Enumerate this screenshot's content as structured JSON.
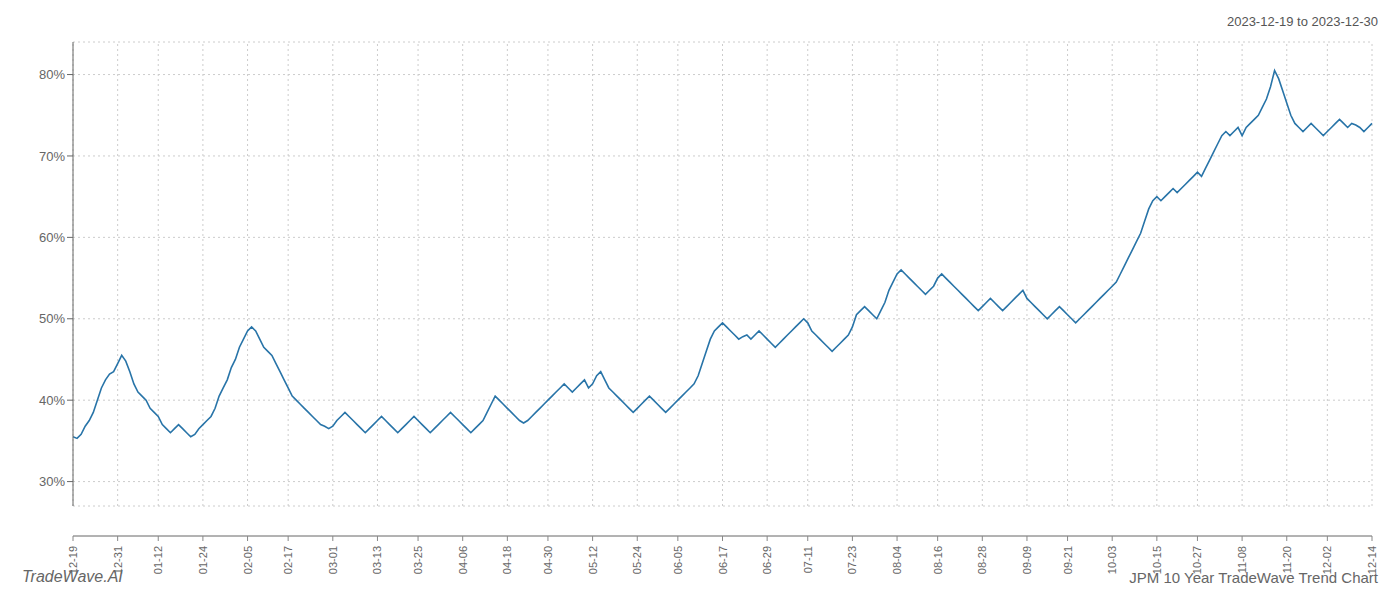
{
  "chart_data": {
    "type": "line",
    "title": "JPM 10 Year TradeWave Trend Chart",
    "subtitle": "2023-12-19 to 2023-12-30",
    "annotations": [
      "TradeWave.AI"
    ],
    "color": "#2874a8",
    "grid": true,
    "ylim": [
      27,
      84
    ],
    "yticks": [
      {
        "value": 30,
        "label": "30%"
      },
      {
        "value": 40,
        "label": "40%"
      },
      {
        "value": 50,
        "label": "50%"
      },
      {
        "value": 60,
        "label": "60%"
      },
      {
        "value": 70,
        "label": "70%"
      },
      {
        "value": 80,
        "label": "80%"
      }
    ],
    "shade": {
      "from": 0.028,
      "to": 0.06,
      "color": "#d8edd4"
    },
    "categories": [
      "12-19",
      null,
      null,
      null,
      null,
      null,
      null,
      null,
      null,
      null,
      null,
      "12-31",
      null,
      null,
      null,
      null,
      null,
      null,
      null,
      null,
      null,
      "01-12",
      null,
      null,
      null,
      null,
      null,
      null,
      null,
      null,
      null,
      null,
      "01-24",
      null,
      null,
      null,
      null,
      null,
      null,
      null,
      null,
      null,
      null,
      "02-05",
      null,
      null,
      null,
      null,
      null,
      null,
      null,
      null,
      null,
      "02-17",
      null,
      null,
      null,
      null,
      null,
      null,
      null,
      null,
      null,
      null,
      "03-01",
      null,
      null,
      null,
      null,
      null,
      null,
      null,
      null,
      null,
      null,
      "03-13",
      null,
      null,
      null,
      null,
      null,
      null,
      null,
      null,
      null,
      "03-25",
      null,
      null,
      null,
      null,
      null,
      null,
      null,
      null,
      null,
      null,
      "04-06",
      null,
      null,
      null,
      null,
      null,
      null,
      null,
      null,
      null,
      null,
      "04-18",
      null,
      null,
      null,
      null,
      null,
      null,
      null,
      null,
      null,
      "04-30",
      null,
      null,
      null,
      null,
      null,
      null,
      null,
      null,
      null,
      null,
      "05-12",
      null,
      null,
      null,
      null,
      null,
      null,
      null,
      null,
      null,
      null,
      "05-24",
      null,
      null,
      null,
      null,
      null,
      null,
      null,
      null,
      null,
      "06-05",
      null,
      null,
      null,
      null,
      null,
      null,
      null,
      null,
      null,
      null,
      "06-17",
      null,
      null,
      null,
      null,
      null,
      null,
      null,
      null,
      null,
      null,
      "06-29",
      null,
      null,
      null,
      null,
      null,
      null,
      null,
      null,
      null,
      "07-11",
      null,
      null,
      null,
      null,
      null,
      null,
      null,
      null,
      null,
      null,
      "07-23",
      null,
      null,
      null,
      null,
      null,
      null,
      null,
      null,
      null,
      null,
      "08-04",
      null,
      null,
      null,
      null,
      null,
      null,
      null,
      null,
      null,
      "08-16",
      null,
      null,
      null,
      null,
      null,
      null,
      null,
      null,
      null,
      null,
      "08-28",
      null,
      null,
      null,
      null,
      null,
      null,
      null,
      null,
      null,
      null,
      "09-09",
      null,
      null,
      null,
      null,
      null,
      null,
      null,
      null,
      null,
      "09-21",
      null,
      null,
      null,
      null,
      null,
      null,
      null,
      null,
      null,
      null,
      "10-03",
      null,
      null,
      null,
      null,
      null,
      null,
      null,
      null,
      null,
      null,
      "10-15",
      null,
      null,
      null,
      null,
      null,
      null,
      null,
      null,
      null,
      "10-27",
      null,
      null,
      null,
      null,
      null,
      null,
      null,
      null,
      null,
      null,
      "11-08",
      null,
      null,
      null,
      null,
      null,
      null,
      null,
      null,
      null,
      null,
      "11-20",
      null,
      null,
      null,
      null,
      null,
      null,
      null,
      null,
      null,
      "12-02",
      null,
      null,
      null,
      null,
      null,
      null,
      null,
      null,
      null,
      null,
      "12-14"
    ],
    "values": [
      35.5,
      35.3,
      35.8,
      36.8,
      37.5,
      38.5,
      40.0,
      41.5,
      42.5,
      43.2,
      43.5,
      44.5,
      45.5,
      44.8,
      43.5,
      42.0,
      41.0,
      40.5,
      40.0,
      39.0,
      38.5,
      38.0,
      37.0,
      36.5,
      36.0,
      36.5,
      37.0,
      36.5,
      36.0,
      35.5,
      35.8,
      36.5,
      37.0,
      37.5,
      38.0,
      39.0,
      40.5,
      41.5,
      42.5,
      44.0,
      45.0,
      46.5,
      47.5,
      48.5,
      49.0,
      48.5,
      47.5,
      46.5,
      46.0,
      45.5,
      44.5,
      43.5,
      42.5,
      41.5,
      40.5,
      40.0,
      39.5,
      39.0,
      38.5,
      38.0,
      37.5,
      37.0,
      36.8,
      36.5,
      36.8,
      37.5,
      38.0,
      38.5,
      38.0,
      37.5,
      37.0,
      36.5,
      36.0,
      36.5,
      37.0,
      37.5,
      38.0,
      37.5,
      37.0,
      36.5,
      36.0,
      36.5,
      37.0,
      37.5,
      38.0,
      37.5,
      37.0,
      36.5,
      36.0,
      36.5,
      37.0,
      37.5,
      38.0,
      38.5,
      38.0,
      37.5,
      37.0,
      36.5,
      36.0,
      36.5,
      37.0,
      37.5,
      38.5,
      39.5,
      40.5,
      40.0,
      39.5,
      39.0,
      38.5,
      38.0,
      37.5,
      37.2,
      37.5,
      38.0,
      38.5,
      39.0,
      39.5,
      40.0,
      40.5,
      41.0,
      41.5,
      42.0,
      41.5,
      41.0,
      41.5,
      42.0,
      42.5,
      41.5,
      42.0,
      43.0,
      43.5,
      42.5,
      41.5,
      41.0,
      40.5,
      40.0,
      39.5,
      39.0,
      38.5,
      39.0,
      39.5,
      40.0,
      40.5,
      40.0,
      39.5,
      39.0,
      38.5,
      39.0,
      39.5,
      40.0,
      40.5,
      41.0,
      41.5,
      42.0,
      43.0,
      44.5,
      46.0,
      47.5,
      48.5,
      49.0,
      49.5,
      49.0,
      48.5,
      48.0,
      47.5,
      47.8,
      48.0,
      47.5,
      48.0,
      48.5,
      48.0,
      47.5,
      47.0,
      46.5,
      47.0,
      47.5,
      48.0,
      48.5,
      49.0,
      49.5,
      50.0,
      49.5,
      48.5,
      48.0,
      47.5,
      47.0,
      46.5,
      46.0,
      46.5,
      47.0,
      47.5,
      48.0,
      49.0,
      50.5,
      51.0,
      51.5,
      51.0,
      50.5,
      50.0,
      51.0,
      52.0,
      53.5,
      54.5,
      55.5,
      56.0,
      55.5,
      55.0,
      54.5,
      54.0,
      53.5,
      53.0,
      53.5,
      54.0,
      55.0,
      55.5,
      55.0,
      54.5,
      54.0,
      53.5,
      53.0,
      52.5,
      52.0,
      51.5,
      51.0,
      51.5,
      52.0,
      52.5,
      52.0,
      51.5,
      51.0,
      51.5,
      52.0,
      52.5,
      53.0,
      53.5,
      52.5,
      52.0,
      51.5,
      51.0,
      50.5,
      50.0,
      50.5,
      51.0,
      51.5,
      51.0,
      50.5,
      50.0,
      49.5,
      50.0,
      50.5,
      51.0,
      51.5,
      52.0,
      52.5,
      53.0,
      53.5,
      54.0,
      54.5,
      55.5,
      56.5,
      57.5,
      58.5,
      59.5,
      60.5,
      62.0,
      63.5,
      64.5,
      65.0,
      64.5,
      65.0,
      65.5,
      66.0,
      65.5,
      66.0,
      66.5,
      67.0,
      67.5,
      68.0,
      67.5,
      68.5,
      69.5,
      70.5,
      71.5,
      72.5,
      73.0,
      72.5,
      73.0,
      73.5,
      72.5,
      73.5,
      74.0,
      74.5,
      75.0,
      76.0,
      77.0,
      78.5,
      80.5,
      79.5,
      78.0,
      76.5,
      75.0,
      74.0,
      73.5,
      73.0,
      73.5,
      74.0,
      73.5,
      73.0,
      72.5,
      73.0,
      73.5,
      74.0,
      74.5,
      74.0,
      73.5,
      74.0,
      73.8,
      73.5,
      73.0,
      73.5,
      74.0
    ]
  }
}
